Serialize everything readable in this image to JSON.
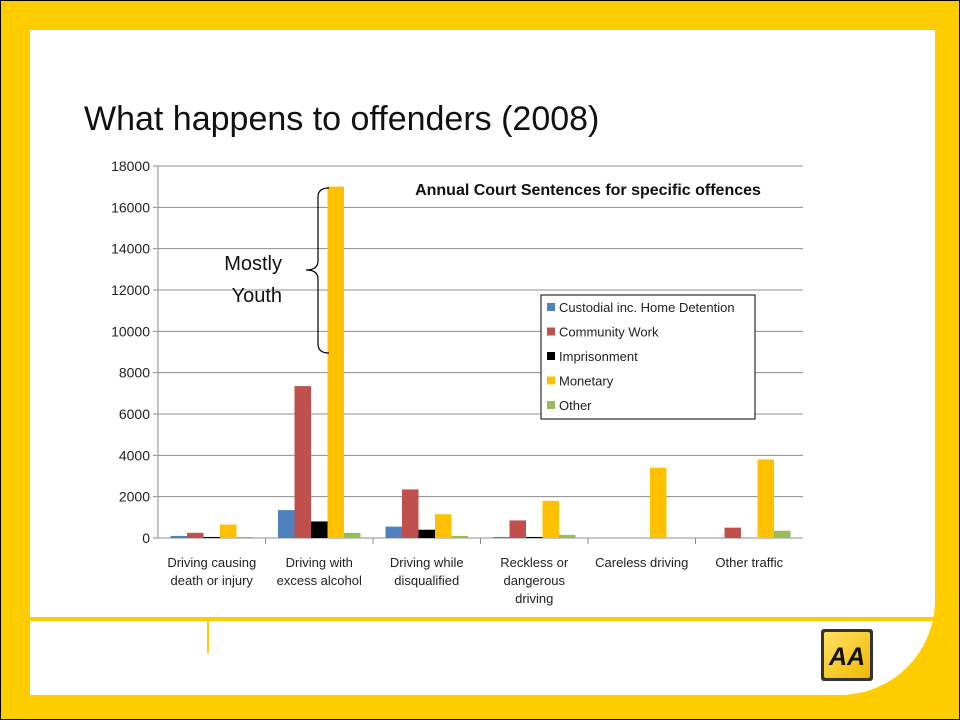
{
  "slide": {
    "title": "What happens to offenders (2008)"
  },
  "brand": {
    "logo_text": "AA",
    "accent_color": "#FFCC00"
  },
  "annotation": {
    "line1": "Mostly",
    "line2": "Youth"
  },
  "chart_data": {
    "type": "bar",
    "title": "Annual Court Sentences for specific offences",
    "categories": [
      [
        "Driving causing",
        "death or injury"
      ],
      [
        "Driving with",
        "excess alcohol"
      ],
      [
        "Driving while",
        "disqualified"
      ],
      [
        "Reckless or",
        "dangerous",
        "driving"
      ],
      [
        "Careless driving"
      ],
      [
        "Other  traffic"
      ]
    ],
    "series": [
      {
        "name": "Custodial inc. Home Detention",
        "color": "#4F81BD",
        "values": [
          100,
          1350,
          550,
          50,
          0,
          0
        ]
      },
      {
        "name": "Community Work",
        "color": "#C0504D",
        "values": [
          250,
          7350,
          2350,
          850,
          0,
          500
        ]
      },
      {
        "name": "Imprisonment",
        "color": "#000000",
        "values": [
          50,
          800,
          400,
          50,
          0,
          0
        ]
      },
      {
        "name": "Monetary",
        "color": "#FFC000",
        "values": [
          650,
          17000,
          1150,
          1800,
          3400,
          3800
        ]
      },
      {
        "name": "Other",
        "color": "#9BBB59",
        "values": [
          50,
          250,
          100,
          150,
          0,
          350
        ]
      }
    ],
    "yticks": [
      "0",
      "2000",
      "4000",
      "6000",
      "8000",
      "10000",
      "12000",
      "14000",
      "16000",
      "18000"
    ],
    "ylim": [
      0,
      18000
    ],
    "grid": true,
    "legend_position": "right"
  }
}
